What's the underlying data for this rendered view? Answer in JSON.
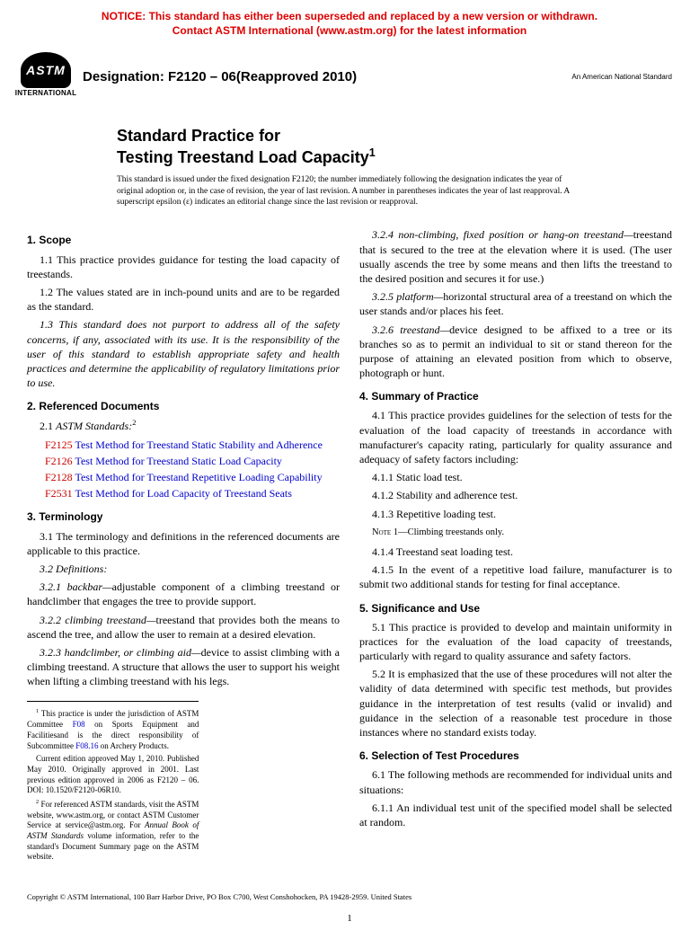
{
  "notice": {
    "line1": "NOTICE: This standard has either been superseded and replaced by a new version or withdrawn.",
    "line2": "Contact ASTM International (www.astm.org) for the latest information"
  },
  "logo": {
    "text": "ASTM",
    "subtext": "INTERNATIONAL"
  },
  "designation": "Designation: F2120 – 06(Reapproved 2010)",
  "ans_label": "An American National Standard",
  "title": {
    "line1": "Standard Practice for",
    "line2": "Testing Treestand Load Capacity",
    "sup": "1"
  },
  "issued_note": "This standard is issued under the fixed designation F2120; the number immediately following the designation indicates the year of original adoption or, in the case of revision, the year of last revision. A number in parentheses indicates the year of last reapproval. A superscript epsilon (ε) indicates an editorial change since the last revision or reapproval.",
  "s1": {
    "head": "1. Scope",
    "p1": "1.1 This practice provides guidance for testing the load capacity of treestands.",
    "p2": "1.2 The values stated are in inch-pound units and are to be regarded as the standard.",
    "p3": "1.3 This standard does not purport to address all of the safety concerns, if any, associated with its use. It is the responsibility of the user of this standard to establish appropriate safety and health practices and determine the applicability of regulatory limitations prior to use."
  },
  "s2": {
    "head": "2. Referenced Documents",
    "p1a": "2.1 ",
    "p1b": "ASTM Standards:",
    "p1sup": "2",
    "r1c": "F2125",
    "r1t": "Test Method for Treestand Static Stability and Adherence",
    "r2c": "F2126",
    "r2t": "Test Method for Treestand Static Load Capacity",
    "r3c": "F2128",
    "r3t": "Test Method for Treestand Repetitive Loading Capability",
    "r4c": "F2531",
    "r4t": "Test Method for Load Capacity of Treestand Seats"
  },
  "s3": {
    "head": "3. Terminology",
    "p1": "3.1 The terminology and definitions in the referenced documents are applicable to this practice.",
    "p2": "3.2 Definitions:",
    "p3t": "3.2.1 backbar—",
    "p3b": "adjustable component of a climbing treestand or handclimber that engages the tree to provide support.",
    "p4t": "3.2.2 climbing treestand—",
    "p4b": "treestand that provides both the means to ascend the tree, and allow the user to remain at a desired elevation.",
    "p5t": "3.2.3 handclimber, or climbing aid—",
    "p5b": "device to assist climbing with a climbing treestand. A structure that allows the user to support his weight when lifting a climbing treestand with his legs.",
    "p6t": "3.2.4 non-climbing, fixed position or hang-on treestand—",
    "p6b": "treestand that is secured to the tree at the elevation where it is used. (The user usually ascends the tree by some means and then lifts the treestand to the desired position and secures it for use.)",
    "p7t": "3.2.5 platform—",
    "p7b": "horizontal structural area of a treestand on which the user stands and/or places his feet.",
    "p8t": "3.2.6 treestand—",
    "p8b": "device designed to be affixed to a tree or its branches so as to permit an individual to sit or stand thereon for the purpose of attaining an elevated position from which to observe, photograph or hunt."
  },
  "s4": {
    "head": "4. Summary of Practice",
    "p1": "4.1 This practice provides guidelines for the selection of tests for the evaluation of the load capacity of treestands in accordance with manufacturer's capacity rating, particularly for quality assurance and adequacy of safety factors including:",
    "p2": "4.1.1 Static load test.",
    "p3": "4.1.2 Stability and adherence test.",
    "p4": "4.1.3 Repetitive loading test.",
    "note_label": "Note",
    "note_num": "1—",
    "note_body": "Climbing treestands only.",
    "p5": "4.1.4 Treestand seat loading test.",
    "p6": "4.1.5 In the event of a repetitive load failure, manufacturer is to submit two additional stands for testing for final acceptance."
  },
  "s5": {
    "head": "5. Significance and Use",
    "p1": "5.1 This practice is provided to develop and maintain uniformity in practices for the evaluation of the load capacity of treestands, particularly with regard to quality assurance and safety factors.",
    "p2": "5.2 It is emphasized that the use of these procedures will not alter the validity of data determined with specific test methods, but provides guidance in the interpretation of test results (valid or invalid) and guidance in the selection of a reasonable test procedure in those instances where no standard exists today."
  },
  "s6": {
    "head": "6. Selection of Test Procedures",
    "p1": "6.1 The following methods are recommended for individual units and situations:",
    "p2": "6.1.1 An individual test unit of the specified model shall be selected at random."
  },
  "footnotes": {
    "f1a": "1",
    "f1b": " This practice is under the jurisdiction of ASTM Committee ",
    "f1link1": "F08",
    "f1c": " on Sports Equipment and Facilitiesand is the direct responsibility of Subcommittee ",
    "f1link2": "F08.16",
    "f1d": " on Archery Products.",
    "f1e": "Current edition approved May 1, 2010. Published May 2010. Originally approved in 2001. Last previous edition approved in 2006 as F2120 – 06. DOI: 10.1520/F2120-06R10.",
    "f2a": "2",
    "f2b": " For referenced ASTM standards, visit the ASTM website, www.astm.org, or contact ASTM Customer Service at service@astm.org. For ",
    "f2c": "Annual Book of ASTM Standards",
    "f2d": " volume information, refer to the standard's Document Summary page on the ASTM website."
  },
  "copyright": "Copyright © ASTM International, 100 Barr Harbor Drive, PO Box C700, West Conshohocken, PA 19428-2959. United States",
  "page_number": "1"
}
